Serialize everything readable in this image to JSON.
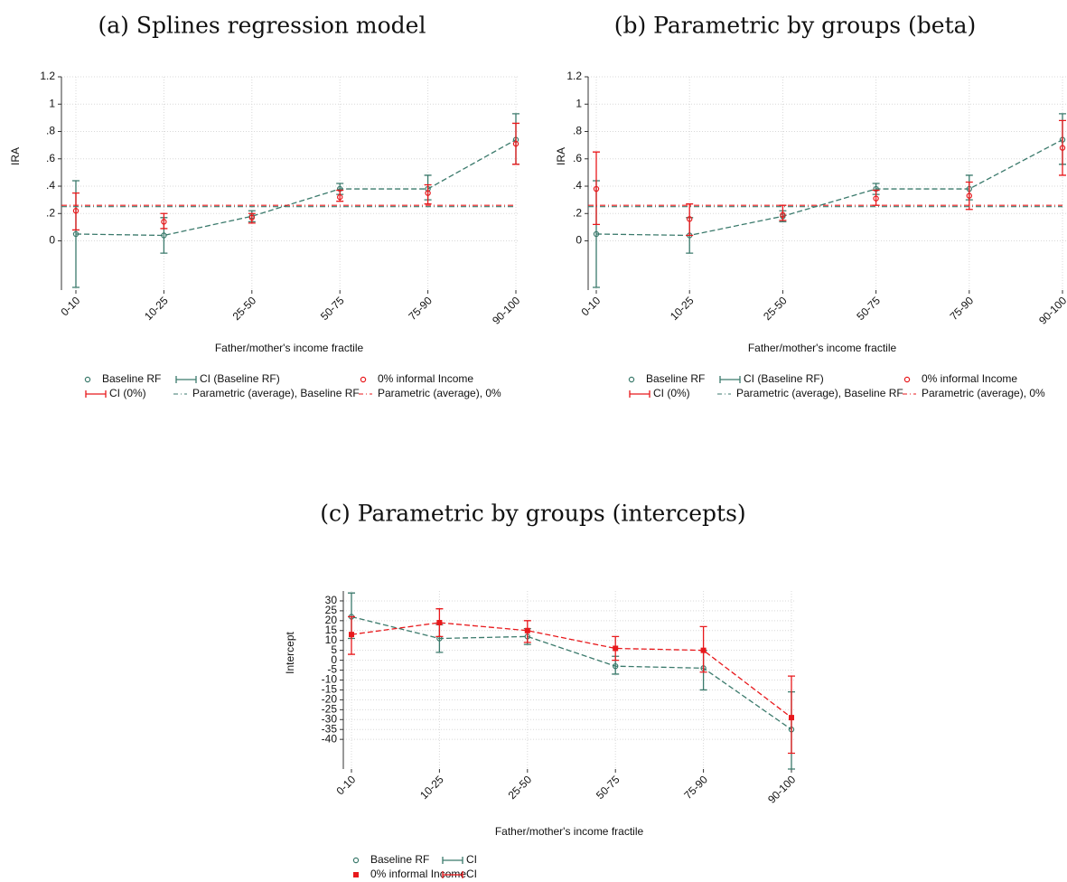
{
  "chart_data": [
    {
      "type": "line",
      "title": "(a) Splines regression model",
      "x_label": "Father/mother's income fractile",
      "y_label": "IRA",
      "categories": [
        "0-10",
        "10-25",
        "25-50",
        "50-75",
        "75-90",
        "90-100"
      ],
      "ylim": [
        -0.36,
        1.2
      ],
      "yticks": [
        0,
        {
          "value": 0.2,
          "label": ".2"
        },
        {
          "value": 0.4,
          "label": ".4"
        },
        {
          "value": 0.6,
          "label": ".6"
        },
        {
          "value": 0.8,
          "label": ".8"
        },
        1,
        1.2
      ],
      "grid": true,
      "series": [
        {
          "name": "Baseline RF",
          "kind": "points",
          "marker": "circle",
          "line_style": "dashed",
          "color": "#3b7a6c",
          "values": [
            0.05,
            0.04,
            0.18,
            0.38,
            0.38,
            0.74
          ]
        },
        {
          "name": "CI (Baseline RF)",
          "kind": "ci",
          "color": "#3b7a6c",
          "lower": [
            -0.34,
            -0.09,
            0.14,
            0.34,
            0.3,
            0.56
          ],
          "upper": [
            0.44,
            0.17,
            0.22,
            0.42,
            0.48,
            0.93
          ]
        },
        {
          "name": "0% informal Income",
          "kind": "points",
          "marker": "circle",
          "color": "#e8191c",
          "values": [
            0.22,
            0.14,
            0.17,
            0.32,
            0.35,
            0.71
          ]
        },
        {
          "name": "CI (0%)",
          "kind": "ci",
          "color": "#e8191c",
          "lower": [
            0.08,
            0.09,
            0.13,
            0.29,
            0.27,
            0.56
          ],
          "upper": [
            0.35,
            0.2,
            0.2,
            0.37,
            0.41,
            0.86
          ]
        },
        {
          "name": "Parametric (average), Baseline RF",
          "kind": "hline",
          "color": "#3b7a6c",
          "value": 0.25
        },
        {
          "name": "Parametric (average), 0%",
          "kind": "hline",
          "color": "#e8191c",
          "value": 0.26
        }
      ]
    },
    {
      "type": "line",
      "title": "(b) Parametric by groups (beta)",
      "x_label": "Father/mother's income fractile",
      "y_label": "IRA",
      "categories": [
        "0-10",
        "10-25",
        "25-50",
        "50-75",
        "75-90",
        "90-100"
      ],
      "ylim": [
        -0.36,
        1.2
      ],
      "yticks": [
        0,
        {
          "value": 0.2,
          "label": ".2"
        },
        {
          "value": 0.4,
          "label": ".4"
        },
        {
          "value": 0.6,
          "label": ".6"
        },
        {
          "value": 0.8,
          "label": ".8"
        },
        1,
        1.2
      ],
      "grid": true,
      "series": [
        {
          "name": "Baseline RF",
          "kind": "points",
          "marker": "circle",
          "line_style": "dashed",
          "color": "#3b7a6c",
          "values": [
            0.05,
            0.04,
            0.18,
            0.38,
            0.38,
            0.74
          ]
        },
        {
          "name": "CI (Baseline RF)",
          "kind": "ci",
          "color": "#3b7a6c",
          "lower": [
            -0.34,
            -0.09,
            0.14,
            0.34,
            0.3,
            0.56
          ],
          "upper": [
            0.44,
            0.17,
            0.22,
            0.42,
            0.48,
            0.93
          ]
        },
        {
          "name": "0% informal Income",
          "kind": "points",
          "marker": "circle",
          "color": "#e8191c",
          "values": [
            0.38,
            0.16,
            0.19,
            0.31,
            0.33,
            0.68
          ]
        },
        {
          "name": "CI (0%)",
          "kind": "ci",
          "color": "#e8191c",
          "lower": [
            0.12,
            0.04,
            0.15,
            0.26,
            0.23,
            0.48
          ],
          "upper": [
            0.65,
            0.27,
            0.26,
            0.37,
            0.43,
            0.88
          ]
        },
        {
          "name": "Parametric (average), Baseline RF",
          "kind": "hline",
          "color": "#3b7a6c",
          "value": 0.25
        },
        {
          "name": "Parametric (average), 0%",
          "kind": "hline",
          "color": "#e8191c",
          "value": 0.26
        }
      ]
    },
    {
      "type": "line",
      "title": "(c) Parametric by groups (intercepts)",
      "x_label": "Father/mother's income fractile",
      "y_label": "Intercept",
      "categories": [
        "0-10",
        "10-25",
        "25-50",
        "50-75",
        "75-90",
        "90-100"
      ],
      "ylim": [
        -55,
        35
      ],
      "yticks": [
        30,
        25,
        20,
        15,
        10,
        5,
        0,
        -5,
        -10,
        -15,
        -20,
        -25,
        -30,
        -35,
        -40
      ],
      "grid": true,
      "series": [
        {
          "name": "Baseline RF",
          "kind": "points",
          "marker": "circle",
          "line_style": "dashed",
          "color": "#3b7a6c",
          "values": [
            22,
            11,
            12,
            -3,
            -4,
            -35
          ]
        },
        {
          "name": "CI",
          "kind": "ci",
          "color": "#3b7a6c",
          "lower": [
            11,
            4,
            8,
            -7,
            -15,
            -55
          ],
          "upper": [
            34,
            18,
            16,
            2,
            5,
            -16
          ]
        },
        {
          "name": "0% informal Income",
          "kind": "points",
          "marker": "square",
          "line_style": "dashed",
          "color": "#e8191c",
          "values": [
            13,
            19,
            15,
            6,
            5,
            -29
          ]
        },
        {
          "name": "CI",
          "kind": "ci",
          "color": "#e8191c",
          "lower": [
            3,
            12,
            9,
            0,
            -6,
            -47
          ],
          "upper": [
            22,
            26,
            20,
            12,
            17,
            -8
          ]
        }
      ]
    }
  ]
}
